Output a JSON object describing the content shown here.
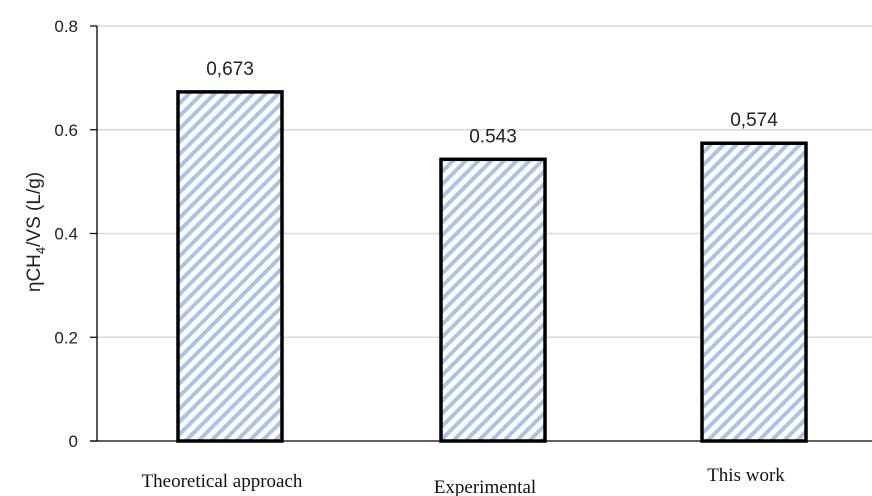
{
  "chart_data": {
    "type": "bar",
    "categories": [
      "Theoretical approach",
      "Experimental",
      "This work"
    ],
    "values": [
      0.673,
      0.543,
      0.574
    ],
    "data_labels": [
      "0,673",
      "0.543",
      "0,574"
    ],
    "ylabel": {
      "prefix": "ηCH",
      "subscript": "4",
      "suffix": "/VS (L/g)"
    },
    "ylim": [
      0,
      0.8
    ],
    "yticks": [
      0,
      0.2,
      0.4,
      0.6,
      0.8
    ],
    "ytick_labels": [
      "0",
      "0.2",
      "0.4",
      "0.6",
      "0.8"
    ],
    "grid": true,
    "bar_fill": "diagonal hatch",
    "colors": {
      "hatch": "#a9c4e4",
      "bar_edge": "#000000",
      "grid": "#d9d9d9",
      "axis": "#000000"
    }
  }
}
